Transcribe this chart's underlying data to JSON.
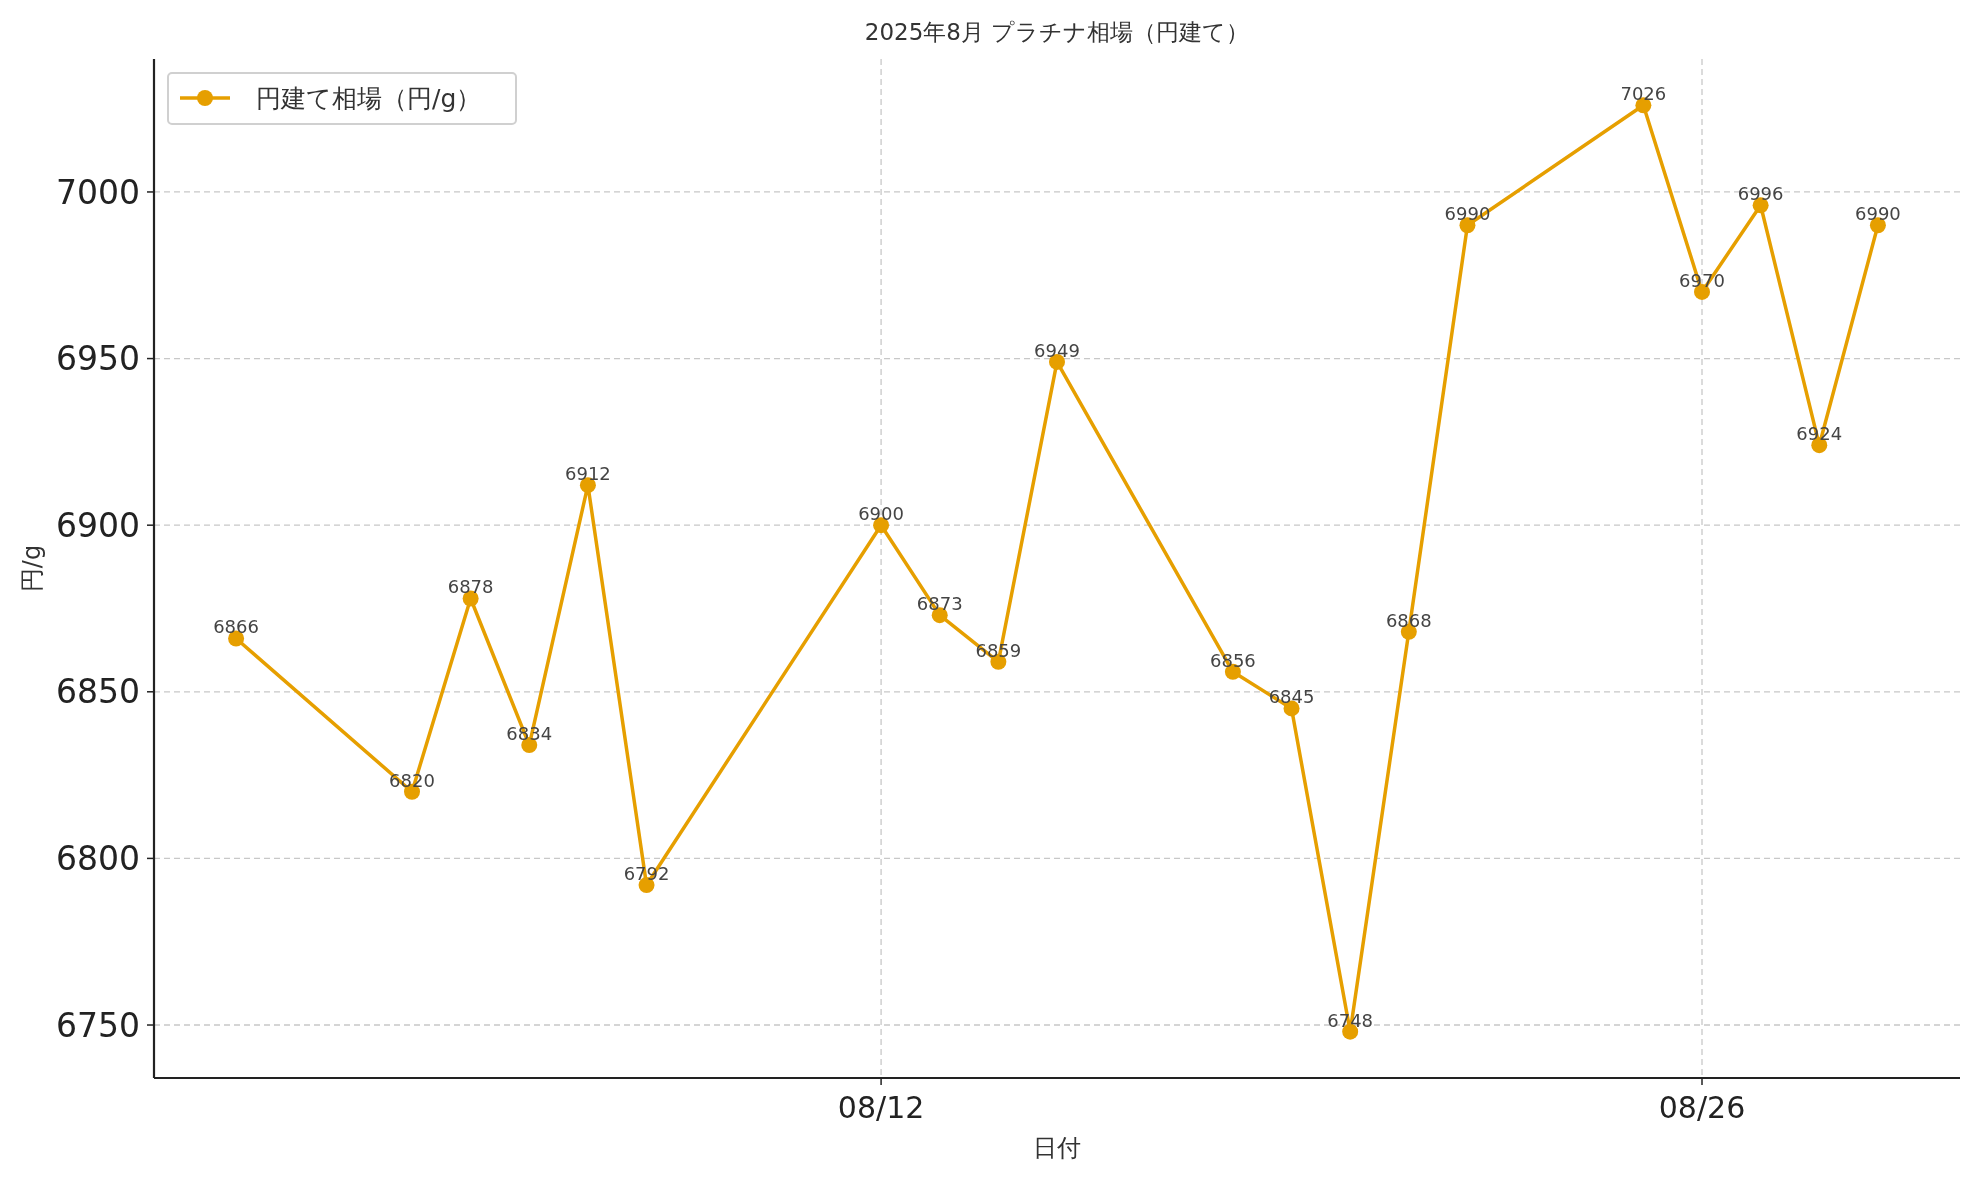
{
  "chart_data": {
    "type": "line",
    "title": "2025年8月 プラチナ相場（円建て）",
    "xlabel": "日付",
    "ylabel": "円/g",
    "x": [
      "2025-08-01",
      "2025-08-04",
      "2025-08-05",
      "2025-08-06",
      "2025-08-07",
      "2025-08-08",
      "2025-08-12",
      "2025-08-13",
      "2025-08-14",
      "2025-08-15",
      "2025-08-18",
      "2025-08-19",
      "2025-08-20",
      "2025-08-21",
      "2025-08-22",
      "2025-08-25",
      "2025-08-26",
      "2025-08-27",
      "2025-08-28",
      "2025-08-29"
    ],
    "series": [
      {
        "name": "円建て相場（円/g）",
        "color": "#e69f00",
        "values": [
          6866,
          6820,
          6878,
          6834,
          6912,
          6792,
          6900,
          6873,
          6859,
          6949,
          6856,
          6845,
          6748,
          6868,
          6990,
          7026,
          6970,
          6996,
          6924,
          6990
        ]
      }
    ],
    "xlim": [
      "2025-07-30T14:24",
      "2025-08-30T09:36"
    ],
    "xticks": [
      {
        "value": "2025-08-12",
        "label": "08/12"
      },
      {
        "value": "2025-08-26",
        "label": "08/26"
      }
    ],
    "ylim": [
      6734.1,
      7039.9
    ],
    "yticks": [
      6750,
      6800,
      6850,
      6900,
      6950,
      7000
    ],
    "grid": true,
    "legend": "top left",
    "marker": "circle",
    "line_style": "solid",
    "data_labels": true
  }
}
